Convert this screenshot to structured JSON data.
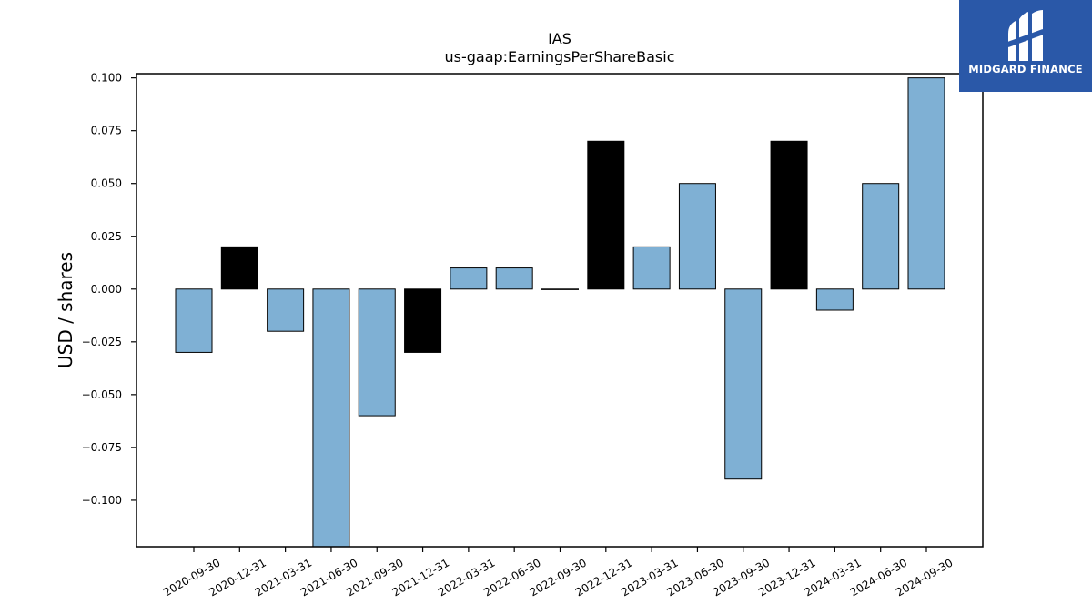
{
  "chart_data": {
    "type": "bar",
    "title": "IAS",
    "subtitle": "us-gaap:EarningsPerShareBasic",
    "xlabel": "",
    "ylabel": "USD / shares",
    "ylim": [
      -0.122,
      0.102
    ],
    "yticks": [
      "0.100",
      "0.075",
      "0.050",
      "0.025",
      "0.000",
      "−0.025",
      "−0.050",
      "−0.075",
      "−0.100"
    ],
    "ytick_values": [
      0.1,
      0.075,
      0.05,
      0.025,
      0.0,
      -0.025,
      -0.05,
      -0.075,
      -0.1
    ],
    "categories": [
      "2020-09-30",
      "2020-12-31",
      "2021-03-31",
      "2021-06-30",
      "2021-09-30",
      "2021-12-31",
      "2022-03-31",
      "2022-06-30",
      "2022-09-30",
      "2022-12-31",
      "2023-03-31",
      "2023-06-30",
      "2023-09-30",
      "2023-12-31",
      "2024-03-31",
      "2024-06-30",
      "2024-09-30"
    ],
    "values": [
      -0.03,
      0.02,
      -0.02,
      -0.13,
      -0.06,
      -0.03,
      0.01,
      0.01,
      0.0,
      0.07,
      0.02,
      0.05,
      -0.09,
      0.07,
      -0.01,
      0.05,
      0.1
    ],
    "bar_colors": [
      "#7fb0d4",
      "#000000",
      "#7fb0d4",
      "#7fb0d4",
      "#7fb0d4",
      "#000000",
      "#7fb0d4",
      "#7fb0d4",
      "#7fb0d4",
      "#000000",
      "#7fb0d4",
      "#7fb0d4",
      "#7fb0d4",
      "#000000",
      "#7fb0d4",
      "#7fb0d4",
      "#7fb0d4"
    ],
    "grid": false,
    "legend": "none"
  },
  "logo": {
    "text": "MIDGARD FINANCE",
    "color": "#2a58a8"
  }
}
